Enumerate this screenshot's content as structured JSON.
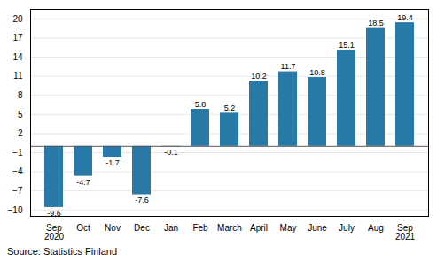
{
  "chart_data": {
    "type": "bar",
    "categories": [
      "Sep\n2020",
      "Oct",
      "Nov",
      "Dec",
      "Jan",
      "Feb",
      "March",
      "April",
      "May",
      "June",
      "July",
      "Aug",
      "Sep\n2021"
    ],
    "values": [
      -9.6,
      -4.7,
      -1.7,
      -7.6,
      -0.1,
      5.8,
      5.2,
      10.2,
      11.7,
      10.8,
      15.1,
      18.5,
      19.4
    ],
    "color": "#2878a8",
    "ylim": [
      -11,
      21.5
    ],
    "yticks": [
      -10,
      -7,
      -4,
      -1,
      2,
      5,
      8,
      11,
      14,
      17,
      20
    ],
    "grid": true,
    "data_labels": true,
    "annotation": "Source: Statistics Finland"
  }
}
